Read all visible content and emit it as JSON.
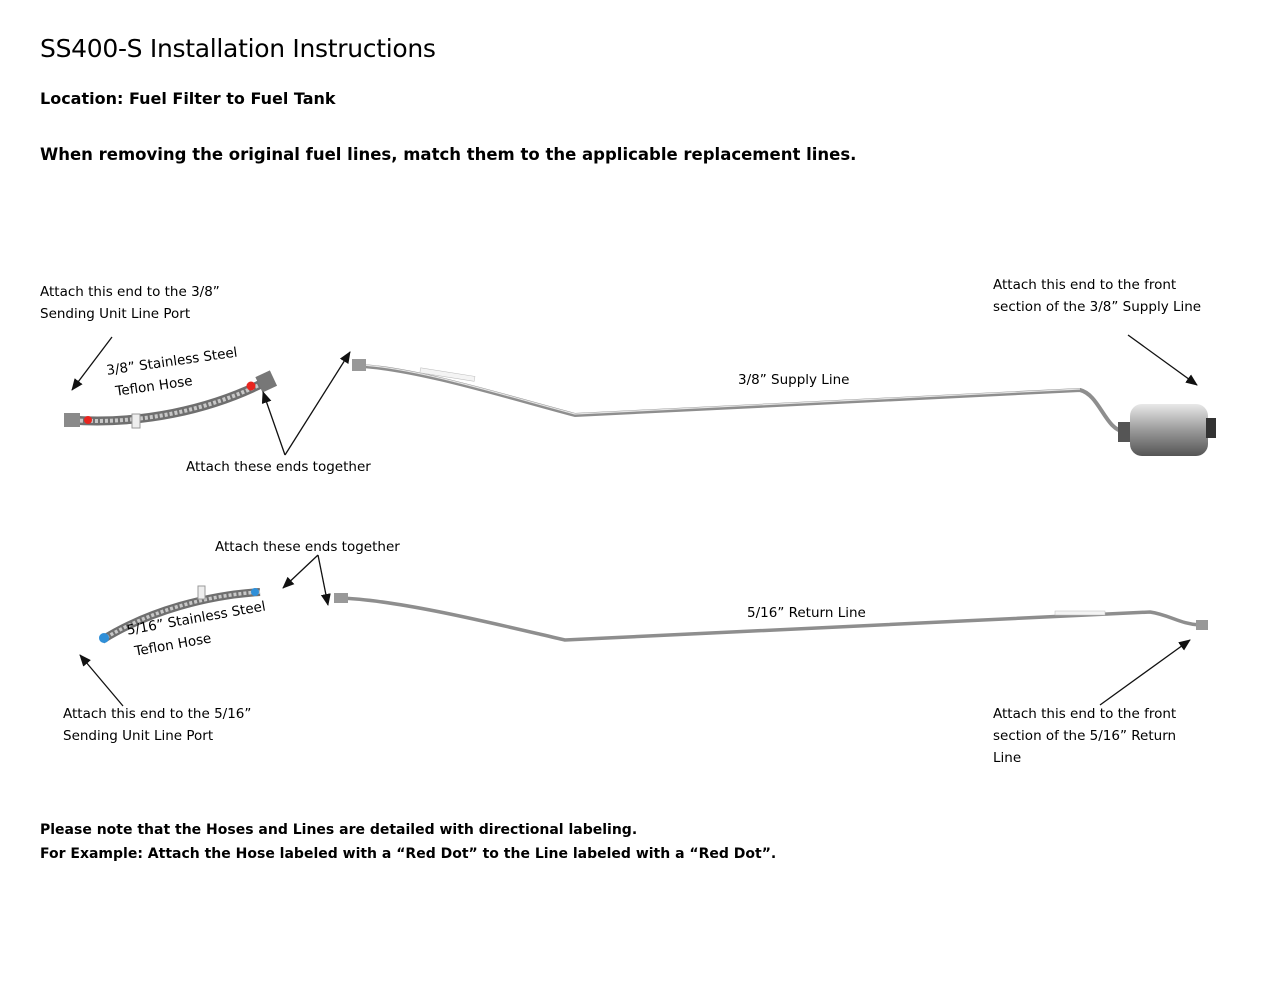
{
  "title": "SS400-S Installation Instructions",
  "location": "Location: Fuel Filter to Fuel Tank",
  "instruction": "When removing the original fuel lines, match them to the applicable replacement lines.",
  "supply": {
    "hose_end_label": [
      "Attach this end to the 3/8”",
      "Sending Unit Line Port"
    ],
    "hose_label": [
      "3/8” Stainless Steel",
      "Teflon Hose"
    ],
    "join_label": "Attach these ends together",
    "line_label": "3/8” Supply Line",
    "front_label": [
      "Attach this end to the front",
      "section of the 3/8” Supply Line"
    ],
    "dot_color": "#e8251f"
  },
  "return": {
    "join_label": "Attach these ends together",
    "hose_label": [
      "5/16” Stainless Steel",
      "Teflon Hose"
    ],
    "line_label": "5/16” Return Line",
    "hose_end_label": [
      "Attach this end to the 5/16”",
      "Sending Unit Line Port"
    ],
    "front_label": [
      "Attach this end to the front",
      "section of the 5/16” Return",
      "Line"
    ],
    "dot_color": "#2f8fd8"
  },
  "notes": [
    "Please note that the Hoses and Lines are detailed with directional labeling.",
    "For Example: Attach the Hose labeled with a “Red Dot” to the Line labeled with a “Red Dot”."
  ]
}
